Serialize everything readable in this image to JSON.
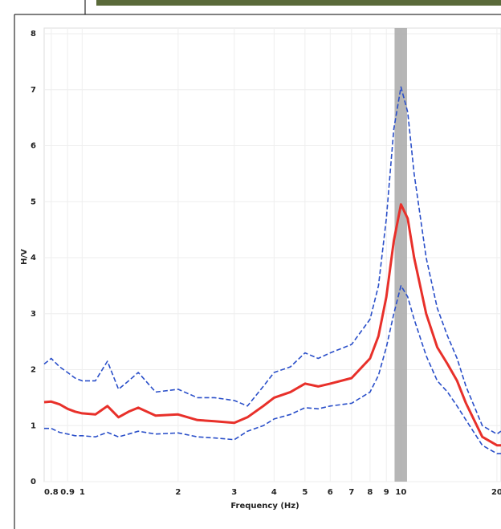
{
  "chart_data": {
    "type": "line",
    "xlabel": "Frequency (Hz)",
    "ylabel": "H/V",
    "xscale": "log",
    "grid": true,
    "xlim": [
      0.76,
      20.6
    ],
    "ylim": [
      0,
      8
    ],
    "xticks": [
      0.8,
      0.9,
      1,
      2,
      3,
      4,
      5,
      6,
      7,
      8,
      9,
      10,
      20
    ],
    "yticks": [
      0,
      1,
      2,
      3,
      4,
      5,
      6,
      7,
      8
    ],
    "shaded_band": {
      "x": [
        9.55,
        10.45
      ],
      "color": "#a9a9a9"
    },
    "x": [
      0.76,
      0.8,
      0.85,
      0.9,
      0.95,
      1,
      1.1,
      1.2,
      1.3,
      1.4,
      1.5,
      1.7,
      2,
      2.3,
      2.6,
      3,
      3.3,
      3.7,
      4,
      4.5,
      5,
      5.5,
      6,
      7,
      8,
      8.5,
      9,
      9.5,
      10,
      10.5,
      11,
      12,
      13,
      14,
      15,
      16,
      18,
      20,
      20.6
    ],
    "series": [
      {
        "color": "#e8302a",
        "style": "solid",
        "values": [
          1.42,
          1.43,
          1.38,
          1.3,
          1.25,
          1.22,
          1.2,
          1.35,
          1.15,
          1.25,
          1.32,
          1.18,
          1.2,
          1.1,
          1.08,
          1.05,
          1.15,
          1.35,
          1.5,
          1.6,
          1.75,
          1.7,
          1.75,
          1.85,
          2.2,
          2.6,
          3.3,
          4.3,
          4.95,
          4.7,
          4.0,
          3.0,
          2.4,
          2.1,
          1.8,
          1.4,
          0.8,
          0.65,
          0.65
        ]
      },
      {
        "color": "#2a4fc9",
        "style": "dashed",
        "values": [
          2.1,
          2.2,
          2.05,
          1.95,
          1.85,
          1.8,
          1.8,
          2.15,
          1.65,
          1.8,
          1.95,
          1.6,
          1.65,
          1.5,
          1.5,
          1.45,
          1.35,
          1.7,
          1.95,
          2.05,
          2.3,
          2.2,
          2.3,
          2.45,
          2.9,
          3.5,
          4.7,
          6.3,
          7.05,
          6.6,
          5.5,
          4.0,
          3.1,
          2.6,
          2.2,
          1.7,
          1.0,
          0.85,
          0.9
        ]
      },
      {
        "color": "#2a4fc9",
        "style": "dashed",
        "values": [
          0.95,
          0.95,
          0.88,
          0.85,
          0.82,
          0.82,
          0.8,
          0.88,
          0.8,
          0.85,
          0.9,
          0.85,
          0.87,
          0.8,
          0.78,
          0.75,
          0.9,
          1.0,
          1.12,
          1.2,
          1.32,
          1.3,
          1.35,
          1.4,
          1.6,
          1.9,
          2.4,
          3.0,
          3.5,
          3.3,
          2.9,
          2.25,
          1.8,
          1.6,
          1.35,
          1.1,
          0.65,
          0.5,
          0.5
        ]
      }
    ]
  }
}
